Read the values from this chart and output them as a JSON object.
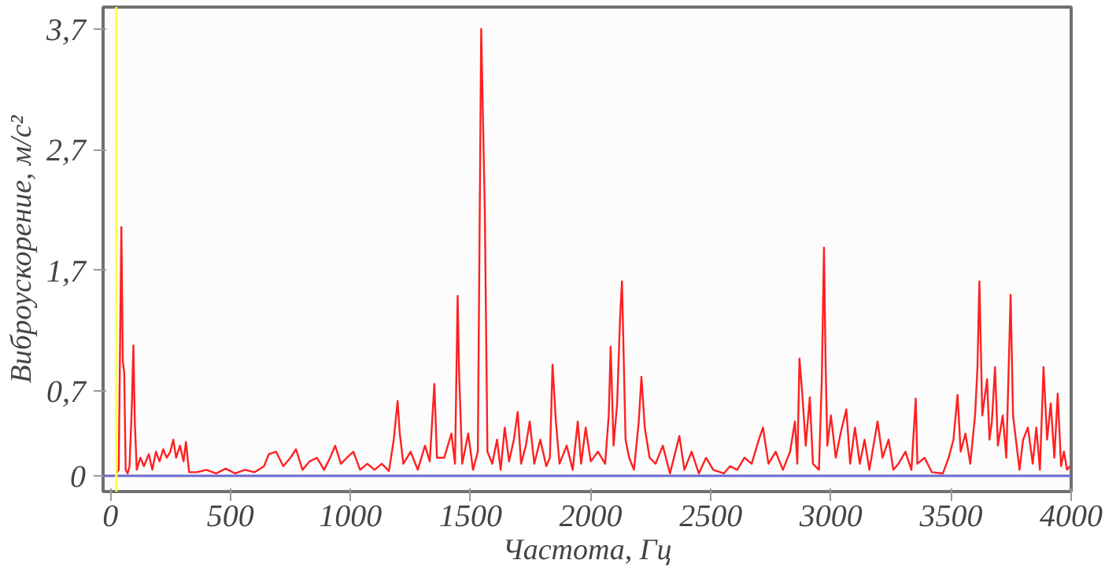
{
  "chart_data": {
    "type": "line",
    "xlabel": "Частота, Гц",
    "ylabel": "Виброускорение, м/с²",
    "x": [
      25,
      35,
      46,
      52,
      58,
      64,
      72,
      80,
      90,
      96,
      102,
      110,
      125,
      140,
      160,
      175,
      190,
      205,
      220,
      235,
      250,
      262,
      274,
      290,
      305,
      315,
      328,
      360,
      400,
      440,
      480,
      520,
      560,
      600,
      640,
      660,
      690,
      720,
      750,
      773,
      800,
      830,
      860,
      890,
      915,
      936,
      960,
      985,
      1012,
      1040,
      1070,
      1100,
      1130,
      1160,
      1180,
      1196,
      1205,
      1220,
      1250,
      1280,
      1310,
      1330,
      1349,
      1360,
      1390,
      1420,
      1435,
      1446,
      1452,
      1465,
      1490,
      1510,
      1530,
      1544,
      1559,
      1570,
      1590,
      1610,
      1625,
      1642,
      1660,
      1680,
      1696,
      1710,
      1730,
      1746,
      1765,
      1790,
      1815,
      1830,
      1841,
      1855,
      1870,
      1900,
      1925,
      1946,
      1960,
      1979,
      2000,
      2030,
      2060,
      2075,
      2083,
      2095,
      2110,
      2122,
      2130,
      2145,
      2160,
      2180,
      2200,
      2211,
      2225,
      2245,
      2270,
      2300,
      2330,
      2369,
      2390,
      2420,
      2450,
      2480,
      2510,
      2554,
      2580,
      2610,
      2640,
      2670,
      2700,
      2717,
      2740,
      2770,
      2800,
      2830,
      2850,
      2860,
      2869,
      2880,
      2895,
      2912,
      2925,
      2950,
      2962,
      2971,
      2978,
      2985,
      3000,
      3020,
      3040,
      3064,
      3080,
      3100,
      3120,
      3140,
      3160,
      3194,
      3215,
      3240,
      3260,
      3281,
      3310,
      3335,
      3353,
      3360,
      3390,
      3420,
      3466,
      3490,
      3510,
      3527,
      3540,
      3560,
      3580,
      3600,
      3610,
      3618,
      3630,
      3650,
      3660,
      3670,
      3683,
      3695,
      3715,
      3730,
      3748,
      3758,
      3770,
      3785,
      3800,
      3820,
      3840,
      3855,
      3870,
      3885,
      3900,
      3915,
      3930,
      3944,
      3958,
      3970,
      3983,
      3995
    ],
    "series": [
      {
        "color": "#ff2020",
        "values": [
          0.02,
          0.05,
          2.06,
          0.95,
          0.85,
          0.05,
          0.02,
          0.08,
          0.6,
          1.08,
          0.45,
          0.05,
          0.15,
          0.08,
          0.18,
          0.05,
          0.2,
          0.12,
          0.22,
          0.15,
          0.2,
          0.3,
          0.15,
          0.25,
          0.12,
          0.28,
          0.03,
          0.03,
          0.05,
          0.02,
          0.06,
          0.02,
          0.05,
          0.03,
          0.08,
          0.18,
          0.2,
          0.08,
          0.15,
          0.22,
          0.05,
          0.12,
          0.15,
          0.05,
          0.15,
          0.25,
          0.1,
          0.15,
          0.2,
          0.05,
          0.1,
          0.05,
          0.1,
          0.04,
          0.3,
          0.62,
          0.35,
          0.1,
          0.2,
          0.05,
          0.25,
          0.12,
          0.76,
          0.15,
          0.15,
          0.35,
          0.1,
          1.49,
          0.85,
          0.1,
          0.35,
          0.05,
          0.2,
          3.7,
          2.2,
          0.2,
          0.1,
          0.3,
          0.05,
          0.4,
          0.12,
          0.3,
          0.53,
          0.1,
          0.25,
          0.45,
          0.1,
          0.3,
          0.08,
          0.15,
          0.92,
          0.45,
          0.1,
          0.25,
          0.05,
          0.45,
          0.1,
          0.4,
          0.12,
          0.2,
          0.1,
          0.5,
          1.07,
          0.25,
          0.6,
          1.3,
          1.61,
          0.3,
          0.15,
          0.05,
          0.45,
          0.82,
          0.4,
          0.15,
          0.1,
          0.25,
          0.02,
          0.33,
          0.05,
          0.2,
          0.02,
          0.15,
          0.05,
          0.02,
          0.08,
          0.05,
          0.15,
          0.1,
          0.3,
          0.4,
          0.1,
          0.2,
          0.05,
          0.2,
          0.45,
          0.1,
          0.97,
          0.7,
          0.25,
          0.65,
          0.1,
          0.05,
          0.8,
          1.89,
          0.9,
          0.25,
          0.5,
          0.15,
          0.35,
          0.55,
          0.1,
          0.4,
          0.1,
          0.3,
          0.05,
          0.45,
          0.15,
          0.3,
          0.05,
          0.1,
          0.2,
          0.05,
          0.64,
          0.1,
          0.15,
          0.03,
          0.02,
          0.15,
          0.3,
          0.67,
          0.2,
          0.35,
          0.1,
          0.5,
          0.9,
          1.61,
          0.5,
          0.8,
          0.3,
          0.45,
          0.9,
          0.25,
          0.5,
          0.15,
          1.5,
          0.5,
          0.3,
          0.05,
          0.3,
          0.4,
          0.1,
          0.4,
          0.05,
          0.9,
          0.3,
          0.6,
          0.15,
          0.68,
          0.08,
          0.2,
          0.05,
          0.08
        ]
      }
    ],
    "xlim": [
      -30,
      4000
    ],
    "ylim": [
      -0.13,
      3.88
    ],
    "xticks": [
      0,
      500,
      1000,
      1500,
      2000,
      2500,
      3000,
      3500,
      4000
    ],
    "yticks": [
      0,
      {
        "value": 0.7,
        "label": "0,7"
      },
      {
        "value": 1.7,
        "label": "1,7"
      },
      {
        "value": 2.7,
        "label": "2,7"
      },
      {
        "value": 3.7,
        "label": "3,7"
      }
    ],
    "ref_lines": [
      {
        "axis": "y",
        "value": 0,
        "color": "#6a6acf"
      },
      {
        "axis": "x",
        "value": 25,
        "color": "#ffff50"
      }
    ],
    "grid": false
  }
}
